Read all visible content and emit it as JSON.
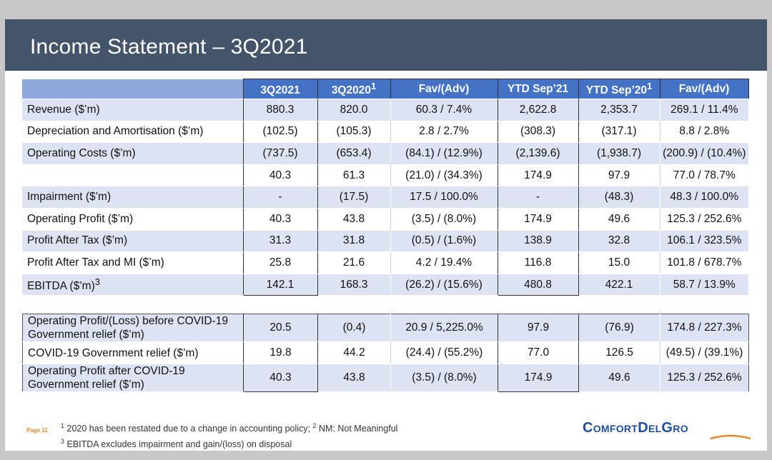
{
  "title": "Income Statement – 3Q2021",
  "columns": [
    "3Q2021",
    "3Q2020",
    "Fav/(Adv)",
    "YTD Sep’21",
    "YTD Sep’20",
    "Fav/(Adv)"
  ],
  "column_superscripts": [
    "",
    "1",
    "",
    "",
    "1",
    ""
  ],
  "main_rows": [
    {
      "label": "Revenue ($’m)",
      "values": [
        "880.3",
        "820.0",
        "60.3 / 7.4%",
        "2,622.8",
        "2,353.7",
        "269.1 / 11.4%"
      ]
    },
    {
      "label": "Depreciation and Amortisation ($’m)",
      "values": [
        "(102.5)",
        "(105.3)",
        "2.8 / 2.7%",
        "(308.3)",
        "(317.1)",
        "8.8 / 2.8%"
      ]
    },
    {
      "label": "Operating Costs ($’m)",
      "values": [
        "(737.5)",
        "(653.4)",
        "(84.1) / (12.9%)",
        "(2,139.6)",
        "(1,938.7)",
        "(200.9) / (10.4%)"
      ]
    },
    {
      "label": "",
      "values": [
        "40.3",
        "61.3",
        "(21.0) / (34.3%)",
        "174.9",
        "97.9",
        "77.0 / 78.7%"
      ]
    },
    {
      "label": "Impairment ($’m)",
      "values": [
        "-",
        "(17.5)",
        "17.5 / 100.0%",
        "-",
        "(48.3)",
        "48.3 / 100.0%"
      ]
    },
    {
      "label": "Operating Profit ($’m)",
      "values": [
        "40.3",
        "43.8",
        "(3.5) / (8.0%)",
        "174.9",
        "49.6",
        "125.3 / 252.6%"
      ]
    },
    {
      "label": "Profit After Tax ($’m)",
      "values": [
        "31.3",
        "31.8",
        "(0.5) / (1.6%)",
        "138.9",
        "32.8",
        "106.1 / 323.5%"
      ]
    },
    {
      "label": "Profit After Tax and MI ($’m)",
      "values": [
        "25.8",
        "21.6",
        "4.2 / 19.4%",
        "116.8",
        "15.0",
        "101.8 / 678.7%"
      ]
    },
    {
      "label": "EBITDA ($’m)",
      "label_superscript": "3",
      "values": [
        "142.1",
        "168.3",
        "(26.2) / (15.6%)",
        "480.8",
        "422.1",
        "58.7 / 13.9%"
      ]
    }
  ],
  "covid_rows": [
    {
      "label": "Operating Profit/(Loss) before COVID-19 Government relief ($’m)",
      "values": [
        "20.5",
        "(0.4)",
        "20.9 / 5,225.0%",
        "97.9",
        "(76.9)",
        "174.8 / 227.3%"
      ]
    },
    {
      "label": "COVID-19 Government relief ($’m)",
      "values": [
        "19.8",
        "44.2",
        "(24.4) / (55.2%)",
        "77.0",
        "126.5",
        "(49.5) / (39.1%)"
      ]
    },
    {
      "label": "Operating Profit after COVID-19 Government relief ($’m)",
      "values": [
        "40.3",
        "43.8",
        "(3.5) / (8.0%)",
        "174.9",
        "49.6",
        "125.3 / 252.6%"
      ]
    }
  ],
  "footnotes": {
    "line1_sup1": "1",
    "line1_text1": " 2020 has been restated due to a change in accounting policy; ",
    "line1_sup2": "2",
    "line1_text2": " NM: Not Meaningful",
    "line2_sup": "3",
    "line2_text": " EBITDA excludes impairment and gain/(loss) on disposal"
  },
  "page_number": "Page 11",
  "logo_text": "ComfortDelGro",
  "colors": {
    "title_bar": "#44546a",
    "header": "#4472c4",
    "header_label": "#8ea9db",
    "row_shade": "#dde3f3",
    "page_number": "#d98e2c",
    "logo": "#1f4e9c"
  }
}
